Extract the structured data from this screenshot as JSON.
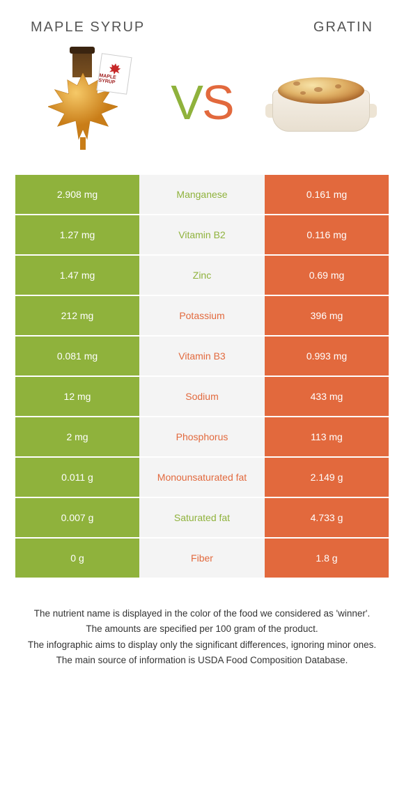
{
  "colors": {
    "green": "#8fb23c",
    "orange": "#e2693d",
    "mid_bg": "#f4f4f4",
    "title_text": "#555555"
  },
  "food_left": {
    "title": "MAPLE SYRUP"
  },
  "food_right": {
    "title": "GRATIN"
  },
  "vs": {
    "v": "V",
    "s": "S"
  },
  "rows": [
    {
      "left": "2.908 mg",
      "nutrient": "Manganese",
      "right": "0.161 mg",
      "winner": "left"
    },
    {
      "left": "1.27 mg",
      "nutrient": "Vitamin B2",
      "right": "0.116 mg",
      "winner": "left"
    },
    {
      "left": "1.47 mg",
      "nutrient": "Zinc",
      "right": "0.69 mg",
      "winner": "left"
    },
    {
      "left": "212 mg",
      "nutrient": "Potassium",
      "right": "396 mg",
      "winner": "right"
    },
    {
      "left": "0.081 mg",
      "nutrient": "Vitamin B3",
      "right": "0.993 mg",
      "winner": "right"
    },
    {
      "left": "12 mg",
      "nutrient": "Sodium",
      "right": "433 mg",
      "winner": "right"
    },
    {
      "left": "2 mg",
      "nutrient": "Phosphorus",
      "right": "113 mg",
      "winner": "right"
    },
    {
      "left": "0.011 g",
      "nutrient": "Monounsaturated fat",
      "right": "2.149 g",
      "winner": "right"
    },
    {
      "left": "0.007 g",
      "nutrient": "Saturated fat",
      "right": "4.733 g",
      "winner": "left"
    },
    {
      "left": "0 g",
      "nutrient": "Fiber",
      "right": "1.8 g",
      "winner": "right"
    }
  ],
  "footnotes": [
    "The nutrient name is displayed in the color of the food we considered as 'winner'.",
    "The amounts are specified per 100 gram of the product.",
    "The infographic aims to display only the significant differences, ignoring minor ones.",
    "The main source of information is USDA Food Composition Database."
  ],
  "tag_text": "MAPLE SYRUP"
}
